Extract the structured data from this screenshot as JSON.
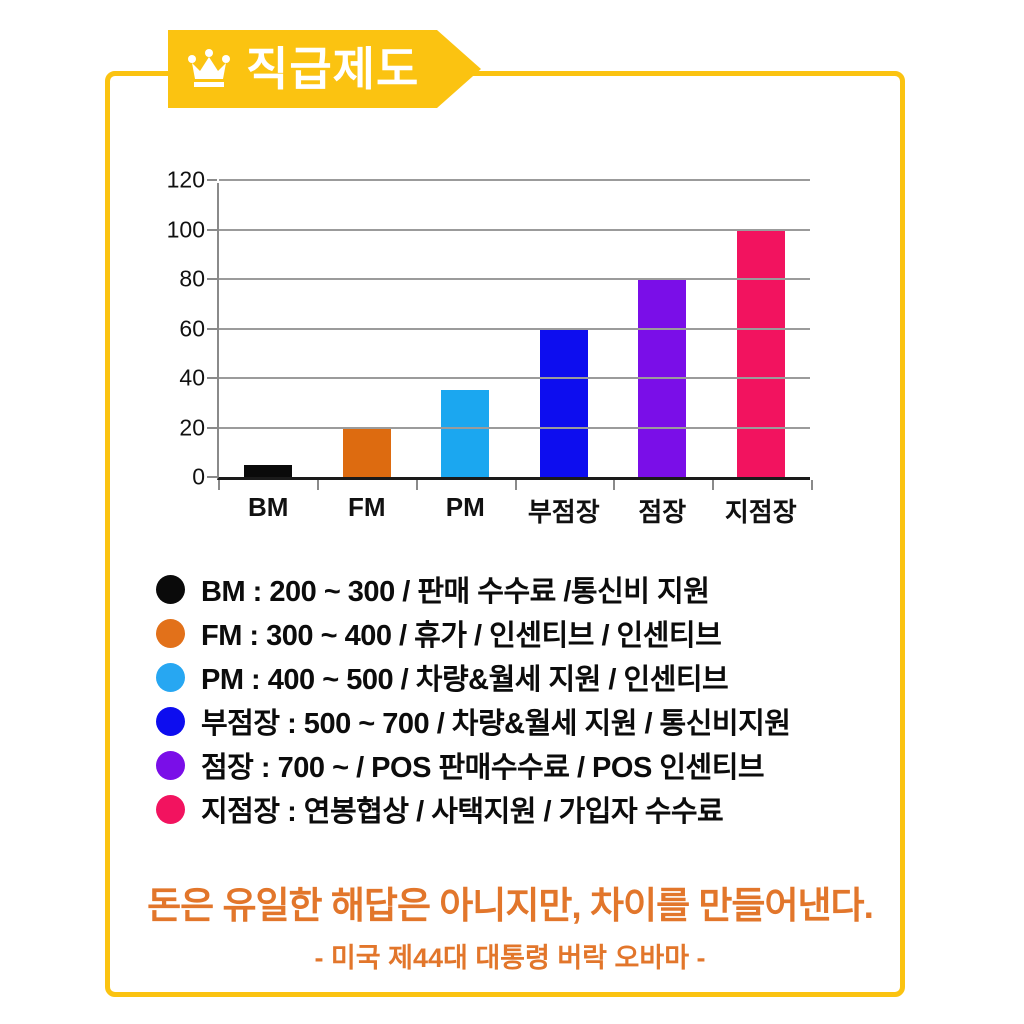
{
  "page": {
    "background": "#FFFFFF",
    "frame_border_color": "#FBC311"
  },
  "header": {
    "title": "직급제도",
    "icon": "crown-icon",
    "banner_color": "#FBC311",
    "text_color": "#FFFFFF"
  },
  "chart_data": {
    "type": "bar",
    "categories": [
      "BM",
      "FM",
      "PM",
      "부점장",
      "점장",
      "지점장"
    ],
    "values": [
      5,
      20,
      35,
      60,
      80,
      100
    ],
    "colors": [
      "#0A0A0A",
      "#DD6B10",
      "#1BA7F0",
      "#0D0DEF",
      "#7A0EE8",
      "#F2135F"
    ],
    "title": "",
    "xlabel": "",
    "ylabel": "",
    "ylim": [
      0,
      120
    ],
    "yticks": [
      0,
      20,
      40,
      60,
      80,
      100,
      120
    ],
    "grid": true,
    "gridline_color": "#9b9b9b",
    "legend_position": "below-as-text-list"
  },
  "legend": {
    "items": [
      {
        "color": "#0A0A0A",
        "label": "BM : 200 ~ 300 / 판매 수수료 /통신비 지원"
      },
      {
        "color": "#E2711A",
        "label": "FM : 300 ~ 400 / 휴가 / 인센티브 / 인센티브"
      },
      {
        "color": "#27A7F2",
        "label": "PM : 400 ~ 500 / 차량&월세 지원  / 인센티브"
      },
      {
        "color": "#0D0DEF",
        "label": "부점장 : 500 ~ 700 / 차량&월세 지원 / 통신비지원"
      },
      {
        "color": "#7A0EE8",
        "label": "점장 : 700 ~ / POS 판매수수료 / POS 인센티브"
      },
      {
        "color": "#F2135F",
        "label": "지점장 : 연봉협상 / 사택지원 / 가입자 수수료"
      }
    ]
  },
  "quote": {
    "text": "돈은 유일한 해답은 아니지만, 차이를 만들어낸다.",
    "attribution": "- 미국 제44대 대통령 버락 오바마 -",
    "color": "#E2762B"
  }
}
